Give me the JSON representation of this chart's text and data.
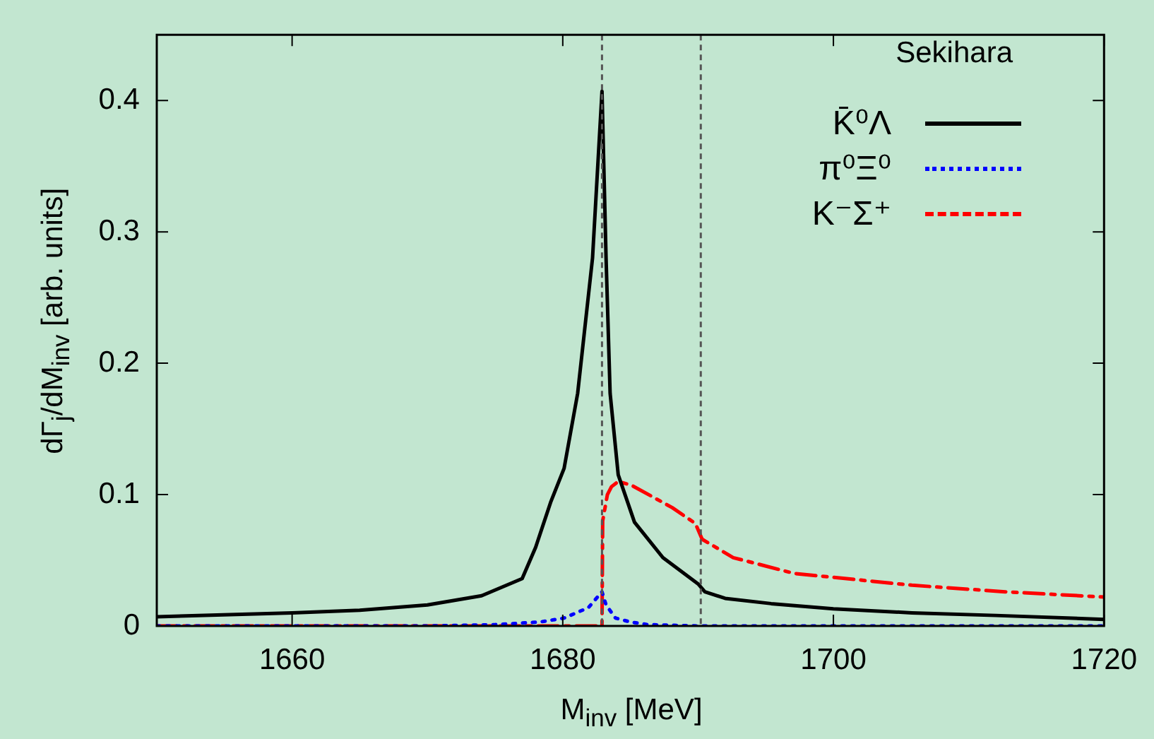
{
  "chart_data": {
    "type": "line",
    "xlabel": "M$_{inv}$ [MeV]",
    "ylabel": "dΓ$_{j}$/dM$_{inv}$ [arb. units]",
    "annotations": [
      "Sekihara"
    ],
    "xlim": [
      1650,
      1720
    ],
    "xticks": [
      1660,
      1680,
      1700,
      1720
    ],
    "ylim": [
      0,
      0.45
    ],
    "yticks": [
      0,
      0.1,
      0.2,
      0.3,
      0.4
    ],
    "grid": false,
    "legend": "top right",
    "ref_lines": [
      {
        "axis": "x",
        "value": 1682.9,
        "color": "#555555",
        "line_style": "dashed"
      },
      {
        "axis": "x",
        "value": 1690.2,
        "color": "#555555",
        "line_style": "dashed"
      }
    ],
    "series": [
      {
        "name": "K̄⁰Λ",
        "color": "#000000",
        "line_style": "solid",
        "x": [
          1650,
          1660,
          1665,
          1670,
          1674,
          1677,
          1678,
          1679.1,
          1680.1,
          1681.1,
          1682.2,
          1682.9,
          1683.2,
          1683.5,
          1684.1,
          1685.3,
          1687.4,
          1690,
          1690.5,
          1692,
          1695.4,
          1700,
          1705.8,
          1712,
          1720
        ],
        "values": [
          0.007,
          0.01,
          0.012,
          0.016,
          0.023,
          0.036,
          0.06,
          0.094,
          0.12,
          0.177,
          0.28,
          0.407,
          0.28,
          0.177,
          0.115,
          0.079,
          0.052,
          0.032,
          0.026,
          0.021,
          0.017,
          0.013,
          0.01,
          0.008,
          0.005
        ]
      },
      {
        "name": "π⁰Ξ⁰",
        "color": "#0000ff",
        "line_style": "dotted",
        "x": [
          1650,
          1670,
          1675,
          1678.3,
          1680.1,
          1681.9,
          1682.9,
          1683.2,
          1683.9,
          1685,
          1686.3,
          1690,
          1720
        ],
        "values": [
          0,
          0,
          0.001,
          0.003,
          0.006,
          0.014,
          0.026,
          0.016,
          0.006,
          0.003,
          0.001,
          0,
          0
        ]
      },
      {
        "name": "K⁻Σ⁺",
        "color": "#ff0000",
        "line_style": "dashed",
        "x": [
          1650,
          1682.9,
          1682.95,
          1683.3,
          1683.6,
          1684.1,
          1685.1,
          1688.1,
          1689.8,
          1690.3,
          1692.6,
          1697.1,
          1705.8,
          1712.7,
          1720
        ],
        "values": [
          0,
          0,
          0.08,
          0.1,
          0.106,
          0.11,
          0.107,
          0.09,
          0.078,
          0.066,
          0.052,
          0.04,
          0.031,
          0.026,
          0.022
        ]
      }
    ]
  }
}
